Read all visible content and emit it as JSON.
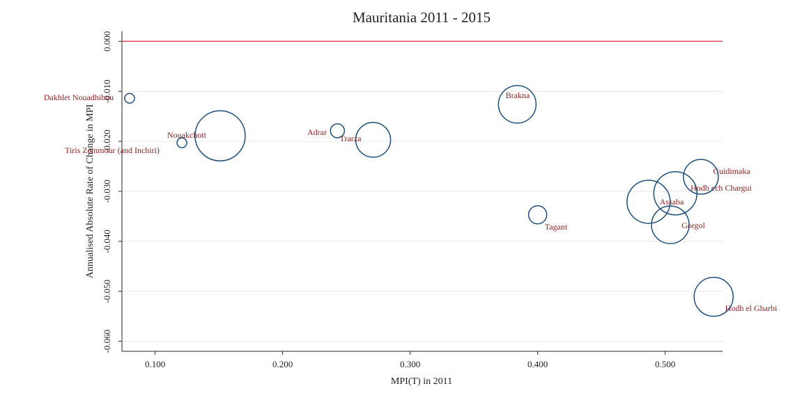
{
  "chart_data": {
    "type": "scatter",
    "title": "Mauritania 2011 - 2015",
    "x_label": "MPI(T) in 2011",
    "y_label": "Annualised Absolute Rate of Change in MPI",
    "xlim": [
      0.074,
      0.545
    ],
    "ylim": [
      -0.062,
      0.002
    ],
    "xticks": [
      {
        "value": 0.1,
        "label": "0.100"
      },
      {
        "value": 0.2,
        "label": "0.200"
      },
      {
        "value": 0.3,
        "label": "0.300"
      },
      {
        "value": 0.4,
        "label": "0.400"
      },
      {
        "value": 0.5,
        "label": "0.500"
      }
    ],
    "yticks": [
      {
        "value": 0,
        "label": "0.000"
      },
      {
        "value": -0.01,
        "label": "-0.010"
      },
      {
        "value": -0.02,
        "label": "-0.020"
      },
      {
        "value": -0.03,
        "label": "-0.030"
      },
      {
        "value": -0.04,
        "label": "-0.040"
      },
      {
        "value": -0.05,
        "label": "-0.050"
      },
      {
        "value": -0.06,
        "label": "-0.060"
      }
    ],
    "grid": true,
    "reference_line": 0,
    "reference_color": "#e0455a",
    "color": "#1f4e79",
    "labels": [
      "Dakhlet Nouadhibou",
      "Tiris Zemmour (and Inchiri)",
      "Nouakchott",
      "Adrar",
      "Trarza",
      "Brakna",
      "Tagant",
      "Assaba",
      "Hodh ech Chargui",
      "Guidimaka",
      "Gorgol",
      "Hodh el Gharbi"
    ],
    "x": [
      0.08,
      0.121,
      0.151,
      0.243,
      0.271,
      0.384,
      0.4,
      0.487,
      0.508,
      0.528,
      0.504,
      0.538
    ],
    "values": [
      -0.0114,
      -0.0203,
      -0.0189,
      -0.0179,
      -0.0197,
      -0.0126,
      -0.0347,
      -0.0321,
      -0.0304,
      -0.0271,
      -0.0367,
      -0.0511
    ],
    "sizes": [
      49,
      49,
      1296,
      100,
      625,
      729,
      169,
      961,
      961,
      625,
      729,
      784
    ]
  }
}
